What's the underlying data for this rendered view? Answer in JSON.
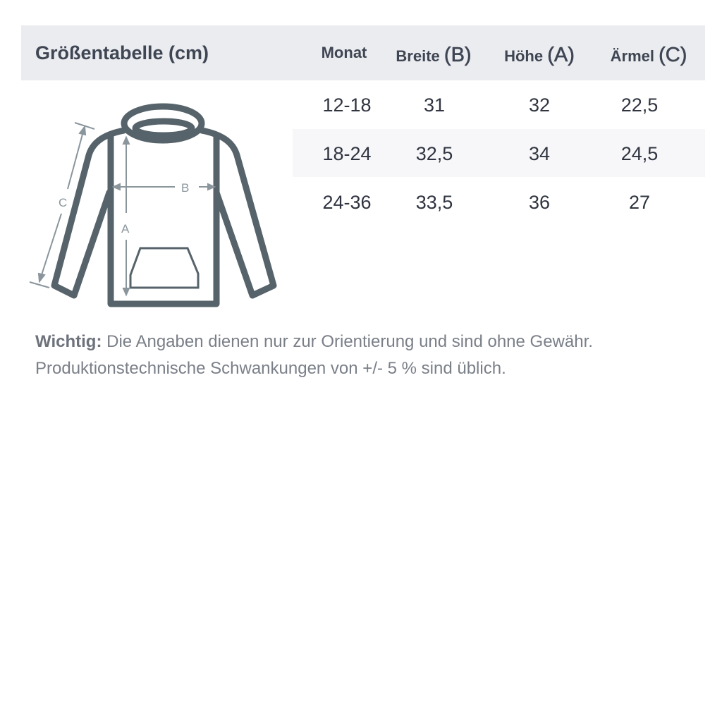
{
  "header": {
    "title": "Größentabelle (cm)",
    "columns": [
      {
        "label": "Monat",
        "letter": ""
      },
      {
        "label": "Breite ",
        "letter": "(B)"
      },
      {
        "label": "Höhe ",
        "letter": "(A)"
      },
      {
        "label": "Ärmel ",
        "letter": "(C)"
      }
    ]
  },
  "rows": [
    [
      "12-18",
      "31",
      "32",
      "22,5"
    ],
    [
      "18-24",
      "32,5",
      "34",
      "24,5"
    ],
    [
      "24-36",
      "33,5",
      "36",
      "27"
    ]
  ],
  "diagram": {
    "labels": {
      "a": "A",
      "b": "B",
      "c": "C"
    },
    "line_color": "#56636a",
    "arrow_color": "#8a959c"
  },
  "note": {
    "bold": "Wichtig:",
    "line1": " Die Angaben dienen nur zur Orientierung und sind ohne Gewähr.",
    "line2": "Produktionstechnische Schwankungen von +/- 5 % sind üblich."
  }
}
